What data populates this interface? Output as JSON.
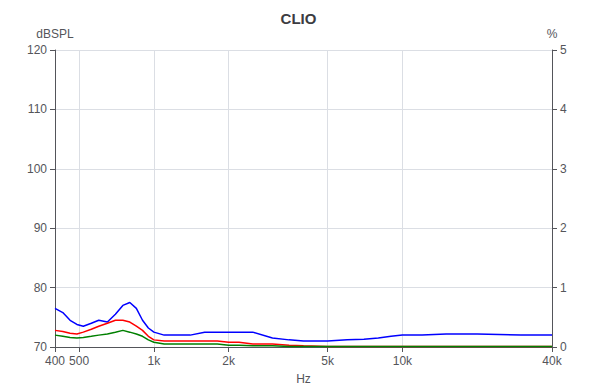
{
  "chart_data": {
    "type": "line",
    "title": "CLIO",
    "xlabel": "Hz",
    "ylabel": "dBSPL",
    "y2label": "%",
    "log": "x",
    "grid": true,
    "xlim": [
      400,
      40000
    ],
    "xticks": [
      400,
      500,
      {
        "value": 1000,
        "label": "1k"
      },
      {
        "value": 2000,
        "label": "2k"
      },
      {
        "value": 5000,
        "label": "5k"
      },
      {
        "value": 10000,
        "label": "10k"
      },
      {
        "value": 40000,
        "label": "40k"
      }
    ],
    "ylim": [
      70,
      120
    ],
    "yticks": [
      70,
      80,
      90,
      100,
      110,
      120
    ],
    "y2lim": [
      0,
      5
    ],
    "y2ticks": [
      0,
      1,
      2,
      3,
      4,
      5
    ],
    "x": [
      400,
      430,
      460,
      490,
      520,
      560,
      600,
      650,
      700,
      750,
      800,
      850,
      900,
      950,
      1000,
      1100,
      1200,
      1400,
      1600,
      1800,
      2000,
      2200,
      2500,
      3000,
      3500,
      4000,
      5000,
      6000,
      7000,
      8000,
      9000,
      10000,
      12000,
      15000,
      20000,
      30000,
      40000
    ],
    "series": [
      {
        "color": "#0000ff",
        "values": [
          76.5,
          75.8,
          74.5,
          73.8,
          73.5,
          74.0,
          74.5,
          74.2,
          75.5,
          77.0,
          77.5,
          76.5,
          74.5,
          73.2,
          72.5,
          72.0,
          72.0,
          72.0,
          72.5,
          72.5,
          72.5,
          72.5,
          72.5,
          71.5,
          71.2,
          71.0,
          71.0,
          71.2,
          71.3,
          71.5,
          71.8,
          72.0,
          72.0,
          72.2,
          72.2,
          72.0,
          72.0
        ]
      },
      {
        "color": "#ff0000",
        "values": [
          72.8,
          72.6,
          72.3,
          72.2,
          72.5,
          73.0,
          73.5,
          74.0,
          74.5,
          74.5,
          74.2,
          73.5,
          72.8,
          71.8,
          71.2,
          71.0,
          71.0,
          71.0,
          71.0,
          71.0,
          70.8,
          70.8,
          70.5,
          70.5,
          70.3,
          70.2,
          70.1,
          70.1,
          70.1,
          70.1,
          70.1,
          70.1,
          70.1,
          70.1,
          70.1,
          70.1,
          70.1
        ]
      },
      {
        "color": "#008000",
        "values": [
          72.0,
          71.8,
          71.6,
          71.5,
          71.6,
          71.8,
          72.0,
          72.2,
          72.5,
          72.8,
          72.5,
          72.2,
          71.8,
          71.2,
          70.8,
          70.5,
          70.5,
          70.5,
          70.5,
          70.5,
          70.3,
          70.3,
          70.2,
          70.2,
          70.1,
          70.1,
          70.1,
          70.1,
          70.1,
          70.1,
          70.1,
          70.1,
          70.1,
          70.1,
          70.1,
          70.1,
          70.1
        ]
      }
    ]
  }
}
